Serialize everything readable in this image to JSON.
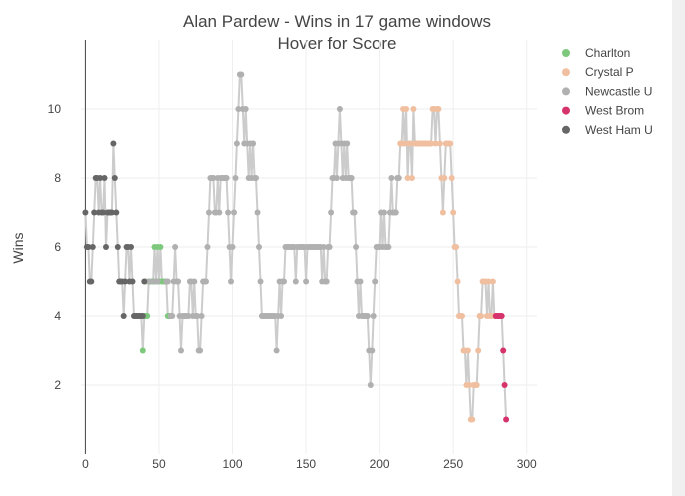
{
  "chart_data": {
    "type": "line",
    "title": "Alan Pardew - Wins in 17 game windows",
    "subtitle": "Hover for Score",
    "xlabel": "",
    "ylabel": "Wins",
    "xlim": [
      -3,
      307
    ],
    "ylim": [
      0,
      12
    ],
    "x_ticks": [
      0,
      50,
      100,
      150,
      200,
      250,
      300
    ],
    "y_ticks": [
      2,
      4,
      6,
      8,
      10
    ],
    "grid": true,
    "legend_position": "right",
    "series": [
      {
        "name": "Charlton",
        "color": "#7ec87e",
        "points": [
          [
            39,
            3
          ],
          [
            40,
            4
          ],
          [
            41,
            4
          ],
          [
            42,
            4
          ],
          [
            43,
            5
          ],
          [
            44,
            5
          ],
          [
            45,
            5
          ],
          [
            46,
            5
          ],
          [
            47,
            6
          ],
          [
            48,
            5
          ],
          [
            49,
            6
          ],
          [
            50,
            5
          ],
          [
            51,
            6
          ],
          [
            52,
            5
          ],
          [
            53,
            5
          ],
          [
            54,
            5
          ],
          [
            55,
            5
          ],
          [
            56,
            4
          ],
          [
            57,
            4
          ],
          [
            58,
            4
          ]
        ]
      },
      {
        "name": "Crystal P",
        "color": "#f0bfa0",
        "points": [
          [
            213,
            8
          ],
          [
            214,
            9
          ],
          [
            215,
            9
          ],
          [
            216,
            10
          ],
          [
            217,
            9
          ],
          [
            218,
            10
          ],
          [
            219,
            8
          ],
          [
            220,
            9
          ],
          [
            221,
            9
          ],
          [
            222,
            8
          ],
          [
            223,
            10
          ],
          [
            224,
            9
          ],
          [
            225,
            9
          ],
          [
            226,
            9
          ],
          [
            227,
            9
          ],
          [
            228,
            9
          ],
          [
            229,
            9
          ],
          [
            230,
            9
          ],
          [
            231,
            9
          ],
          [
            232,
            9
          ],
          [
            233,
            9
          ],
          [
            234,
            9
          ],
          [
            235,
            9
          ],
          [
            236,
            10
          ],
          [
            237,
            10
          ],
          [
            238,
            9
          ],
          [
            239,
            10
          ],
          [
            240,
            10
          ],
          [
            241,
            9
          ],
          [
            242,
            8
          ],
          [
            243,
            7
          ],
          [
            244,
            8
          ],
          [
            245,
            9
          ],
          [
            246,
            9
          ],
          [
            247,
            9
          ],
          [
            248,
            9
          ],
          [
            249,
            8
          ],
          [
            250,
            7
          ],
          [
            251,
            6
          ],
          [
            252,
            6
          ],
          [
            253,
            5
          ],
          [
            254,
            4
          ],
          [
            255,
            4
          ],
          [
            256,
            4
          ],
          [
            257,
            3
          ],
          [
            258,
            3
          ],
          [
            259,
            2
          ],
          [
            260,
            3
          ],
          [
            261,
            2
          ],
          [
            262,
            1
          ],
          [
            263,
            1
          ],
          [
            264,
            2
          ],
          [
            265,
            2
          ],
          [
            266,
            2
          ],
          [
            267,
            3
          ],
          [
            268,
            4
          ],
          [
            269,
            4
          ],
          [
            270,
            5
          ],
          [
            271,
            5
          ],
          [
            272,
            5
          ],
          [
            273,
            4
          ],
          [
            274,
            5
          ],
          [
            275,
            4
          ],
          [
            276,
            4
          ],
          [
            277,
            5
          ],
          [
            278,
            4
          ],
          [
            279,
            4
          ]
        ]
      },
      {
        "name": "Newcastle U",
        "color": "#b0b0b0",
        "points": [
          [
            41,
            5
          ],
          [
            44,
            5
          ],
          [
            47,
            5
          ],
          [
            49,
            5
          ],
          [
            55,
            5
          ],
          [
            56,
            5
          ],
          [
            58,
            4
          ],
          [
            59,
            4
          ],
          [
            60,
            5
          ],
          [
            61,
            6
          ],
          [
            62,
            5
          ],
          [
            63,
            5
          ],
          [
            64,
            4
          ],
          [
            65,
            3
          ],
          [
            66,
            4
          ],
          [
            67,
            4
          ],
          [
            68,
            4
          ],
          [
            69,
            4
          ],
          [
            70,
            4
          ],
          [
            71,
            5
          ],
          [
            72,
            5
          ],
          [
            73,
            4
          ],
          [
            74,
            5
          ],
          [
            75,
            4
          ],
          [
            76,
            4
          ],
          [
            77,
            3
          ],
          [
            78,
            3
          ],
          [
            79,
            4
          ],
          [
            80,
            5
          ],
          [
            81,
            5
          ],
          [
            82,
            5
          ],
          [
            83,
            6
          ],
          [
            84,
            7
          ],
          [
            85,
            8
          ],
          [
            86,
            8
          ],
          [
            87,
            8
          ],
          [
            88,
            7
          ],
          [
            89,
            7
          ],
          [
            90,
            8
          ],
          [
            91,
            7
          ],
          [
            92,
            8
          ],
          [
            93,
            8
          ],
          [
            94,
            8
          ],
          [
            95,
            8
          ],
          [
            96,
            8
          ],
          [
            97,
            7
          ],
          [
            98,
            6
          ],
          [
            99,
            5
          ],
          [
            100,
            6
          ],
          [
            101,
            7
          ],
          [
            102,
            8
          ],
          [
            103,
            9
          ],
          [
            104,
            10
          ],
          [
            105,
            11
          ],
          [
            106,
            11
          ],
          [
            107,
            10
          ],
          [
            108,
            9
          ],
          [
            109,
            10
          ],
          [
            110,
            9
          ],
          [
            111,
            8
          ],
          [
            112,
            9
          ],
          [
            113,
            8
          ],
          [
            114,
            9
          ],
          [
            115,
            8
          ],
          [
            116,
            8
          ],
          [
            117,
            7
          ],
          [
            118,
            6
          ],
          [
            119,
            5
          ],
          [
            120,
            4
          ],
          [
            121,
            4
          ],
          [
            122,
            4
          ],
          [
            123,
            4
          ],
          [
            124,
            4
          ],
          [
            125,
            4
          ],
          [
            126,
            4
          ],
          [
            127,
            4
          ],
          [
            128,
            4
          ],
          [
            129,
            4
          ],
          [
            130,
            3
          ],
          [
            131,
            4
          ],
          [
            132,
            5
          ],
          [
            133,
            4
          ],
          [
            134,
            5
          ],
          [
            135,
            5
          ],
          [
            136,
            6
          ],
          [
            137,
            6
          ],
          [
            138,
            6
          ],
          [
            139,
            6
          ],
          [
            140,
            6
          ],
          [
            141,
            6
          ],
          [
            142,
            6
          ],
          [
            143,
            5
          ],
          [
            144,
            6
          ],
          [
            145,
            6
          ],
          [
            146,
            6
          ],
          [
            147,
            6
          ],
          [
            148,
            6
          ],
          [
            149,
            6
          ],
          [
            150,
            5
          ],
          [
            151,
            6
          ],
          [
            152,
            6
          ],
          [
            153,
            6
          ],
          [
            154,
            6
          ],
          [
            155,
            6
          ],
          [
            156,
            6
          ],
          [
            157,
            6
          ],
          [
            158,
            6
          ],
          [
            159,
            6
          ],
          [
            160,
            6
          ],
          [
            161,
            5
          ],
          [
            162,
            6
          ],
          [
            163,
            5
          ],
          [
            164,
            5
          ],
          [
            165,
            6
          ],
          [
            166,
            6
          ],
          [
            167,
            7
          ],
          [
            168,
            8
          ],
          [
            169,
            8
          ],
          [
            170,
            9
          ],
          [
            171,
            8
          ],
          [
            172,
            9
          ],
          [
            173,
            10
          ],
          [
            174,
            9
          ],
          [
            175,
            8
          ],
          [
            176,
            9
          ],
          [
            177,
            8
          ],
          [
            178,
            9
          ],
          [
            179,
            8
          ],
          [
            180,
            8
          ],
          [
            181,
            8
          ],
          [
            182,
            7
          ],
          [
            183,
            7
          ],
          [
            184,
            6
          ],
          [
            185,
            5
          ],
          [
            186,
            4
          ],
          [
            187,
            5
          ],
          [
            188,
            4
          ],
          [
            189,
            4
          ],
          [
            190,
            4
          ],
          [
            191,
            4
          ],
          [
            192,
            4
          ],
          [
            193,
            3
          ],
          [
            194,
            2
          ],
          [
            195,
            3
          ],
          [
            196,
            4
          ],
          [
            197,
            5
          ],
          [
            198,
            6
          ],
          [
            199,
            6
          ],
          [
            200,
            6
          ],
          [
            201,
            7
          ],
          [
            202,
            6
          ],
          [
            203,
            7
          ],
          [
            204,
            6
          ],
          [
            205,
            6
          ],
          [
            206,
            6
          ],
          [
            207,
            7
          ],
          [
            208,
            8
          ],
          [
            209,
            7
          ],
          [
            210,
            7
          ],
          [
            211,
            7
          ],
          [
            212,
            8
          ],
          [
            213,
            8
          ]
        ]
      },
      {
        "name": "West Brom",
        "color": "#d6336c",
        "points": [
          [
            279,
            4
          ],
          [
            280,
            4
          ],
          [
            281,
            4
          ],
          [
            282,
            4
          ],
          [
            283,
            4
          ],
          [
            284,
            3
          ],
          [
            285,
            2
          ],
          [
            286,
            1
          ]
        ]
      },
      {
        "name": "West Ham U",
        "color": "#666666",
        "points": [
          [
            0,
            7
          ],
          [
            1,
            6
          ],
          [
            2,
            6
          ],
          [
            3,
            5
          ],
          [
            4,
            5
          ],
          [
            5,
            6
          ],
          [
            6,
            7
          ],
          [
            7,
            8
          ],
          [
            8,
            8
          ],
          [
            9,
            7
          ],
          [
            10,
            8
          ],
          [
            11,
            7
          ],
          [
            12,
            7
          ],
          [
            13,
            8
          ],
          [
            14,
            6
          ],
          [
            15,
            7
          ],
          [
            16,
            7
          ],
          [
            17,
            7
          ],
          [
            18,
            7
          ],
          [
            19,
            9
          ],
          [
            20,
            8
          ],
          [
            21,
            7
          ],
          [
            22,
            6
          ],
          [
            23,
            5
          ],
          [
            24,
            5
          ],
          [
            25,
            5
          ],
          [
            26,
            4
          ],
          [
            27,
            5
          ],
          [
            28,
            6
          ],
          [
            29,
            6
          ],
          [
            30,
            5
          ],
          [
            31,
            6
          ],
          [
            32,
            5
          ],
          [
            33,
            4
          ],
          [
            34,
            4
          ],
          [
            35,
            4
          ],
          [
            36,
            4
          ],
          [
            37,
            4
          ],
          [
            38,
            4
          ],
          [
            39,
            4
          ],
          [
            40,
            5
          ]
        ]
      }
    ]
  }
}
